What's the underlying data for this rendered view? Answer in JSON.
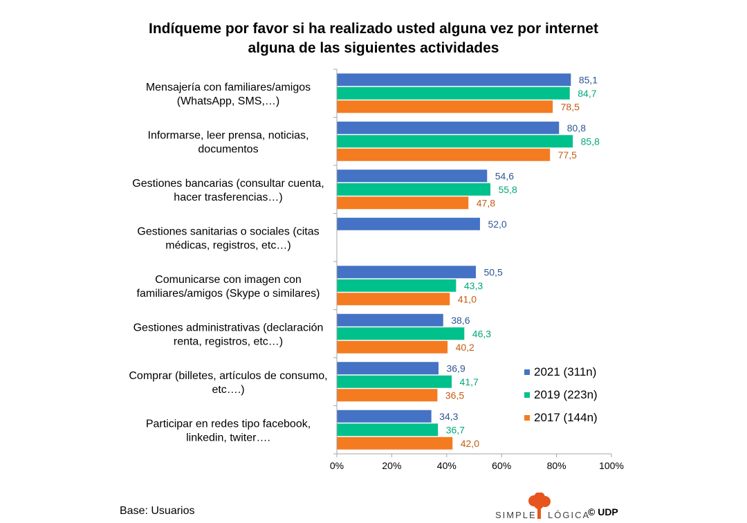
{
  "title_line1": "Indíqueme por favor si ha realizado usted alguna vez por internet",
  "title_line2": "alguna de las siguientes actividades",
  "footer": {
    "base": "Base: Usuarios",
    "brand_left": "SIMPLE",
    "brand_right": "LÓGICA",
    "brand_copy": "© UDP"
  },
  "colors": {
    "s2021": "#4472C4",
    "s2019": "#00C08B",
    "s2017": "#F47B20",
    "axis": "#A6A6A6",
    "l2021": "#2E5597",
    "l2019": "#00A878",
    "l2017": "#C55A11",
    "logo": "#E8541E"
  },
  "chart_data": {
    "type": "bar",
    "orientation": "horizontal",
    "categories": [
      [
        "Mensajería con familiares/amigos",
        "(WhatsApp, SMS,…)"
      ],
      [
        "Informarse, leer prensa, noticias,",
        "documentos"
      ],
      [
        "Gestiones bancarias (consultar cuenta,",
        "hacer trasferencias…)"
      ],
      [
        "Gestiones sanitarias o sociales (citas",
        "médicas, registros, etc…)"
      ],
      [
        "Comunicarse con imagen con",
        "familiares/amigos (Skype o similares)"
      ],
      [
        "Gestiones administrativas (declaración",
        "renta,  registros, etc…)"
      ],
      [
        "Comprar (billetes, artículos de consumo,",
        "etc….)"
      ],
      [
        "Participar en redes tipo facebook,",
        "linkedin, twiter…."
      ]
    ],
    "series": [
      {
        "name": "2021 (311n)",
        "values": [
          85.1,
          80.8,
          54.6,
          52.0,
          50.5,
          38.6,
          36.9,
          34.3
        ],
        "labels": [
          "85,1",
          "80,8",
          "54,6",
          "52,0",
          "50,5",
          "38,6",
          "36,9",
          "34,3"
        ]
      },
      {
        "name": "2019 (223n)",
        "values": [
          84.7,
          85.8,
          55.8,
          null,
          43.3,
          46.3,
          41.7,
          36.7
        ],
        "labels": [
          "84,7",
          "85,8",
          "55,8",
          null,
          "43,3",
          "46,3",
          "41,7",
          "36,7"
        ]
      },
      {
        "name": "2017 (144n)",
        "values": [
          78.5,
          77.5,
          47.8,
          null,
          41.0,
          40.2,
          36.5,
          42.0
        ],
        "labels": [
          "78,5",
          "77,5",
          "47,8",
          null,
          "41,0",
          "40,2",
          "36,5",
          "42,0"
        ]
      }
    ],
    "xlim": [
      0,
      100
    ],
    "xticks": [
      "0%",
      "20%",
      "40%",
      "60%",
      "80%",
      "100%"
    ],
    "legend_position": "bottom-right"
  }
}
